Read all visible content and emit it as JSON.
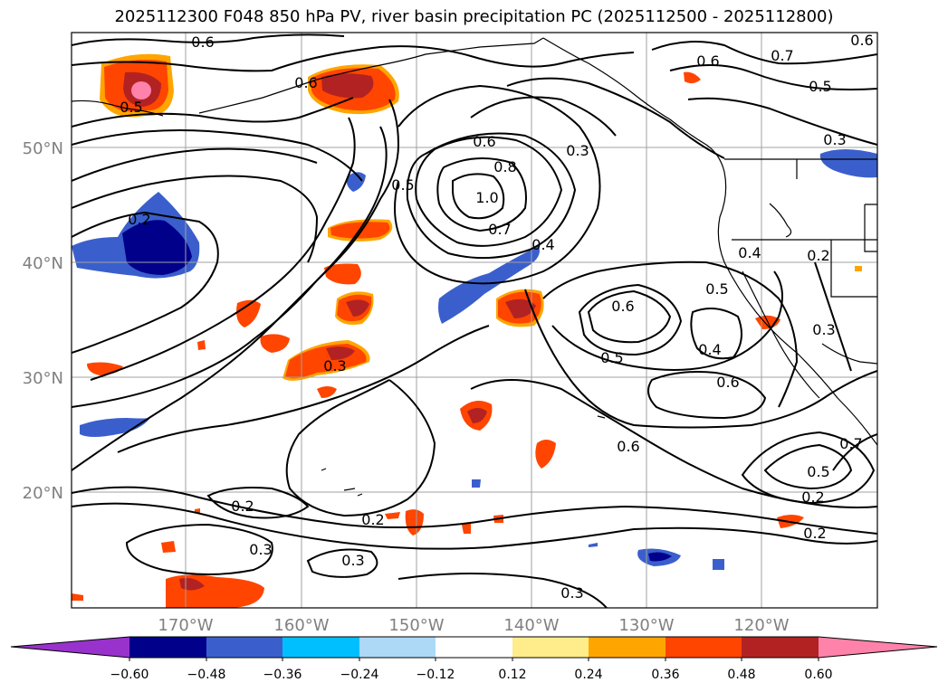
{
  "title": "2025112300 F048 850 hPa PV, river basin precipitation PC (2025112500 - 2025112800)",
  "map": {
    "lat_labels": [
      "50°N",
      "40°N",
      "30°N",
      "20°N"
    ],
    "lon_labels": [
      "170°W",
      "160°W",
      "150°W",
      "140°W",
      "130°W",
      "120°W"
    ]
  },
  "contour_labels": [
    "0.6",
    "0.6",
    "0.6",
    "0.7",
    "0.5",
    "0.5",
    "0.3",
    "0.6",
    "0.8",
    "1.0",
    "0.7",
    "0.5",
    "0.4",
    "0.2",
    "0.3",
    "0.4",
    "0.5",
    "0.6",
    "0.4",
    "0.5",
    "0.6",
    "0.2",
    "0.3",
    "0.3",
    "0.2",
    "0.3",
    "0.3",
    "0.2",
    "0.6",
    "0.7",
    "0.5",
    "0.2",
    "0.2",
    "0.3",
    "0.6"
  ],
  "colorbar": {
    "ticks": [
      "−0.60",
      "−0.48",
      "−0.36",
      "−0.24",
      "−0.12",
      "0.12",
      "0.24",
      "0.36",
      "0.48",
      "0.60"
    ],
    "colors": {
      "below": "#9932cc",
      "n060": "#00008b",
      "n048": "#3a5fcd",
      "n036": "#00bfff",
      "n024": "#add8f6",
      "n012": "#ffffff",
      "p012": "#ffec8b",
      "p024": "#ffa500",
      "p036": "#ff4500",
      "p048": "#b22222",
      "above": "#ff82ab"
    }
  },
  "colors": {
    "tick_text": "#808080",
    "grid": "#a0a0a0",
    "contour": "#000000"
  }
}
